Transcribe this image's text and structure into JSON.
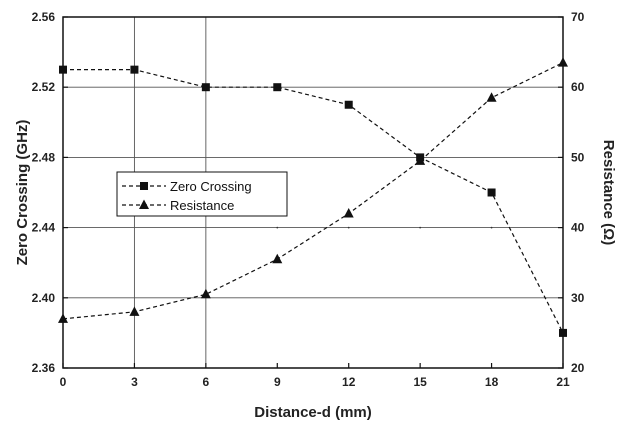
{
  "chart_data": {
    "type": "line",
    "xlabel": "Distance-d (mm)",
    "ylabel_left": "Zero Crossing (GHz)",
    "ylabel_right": "Resistance (Ω)",
    "x": [
      0,
      3,
      6,
      9,
      12,
      15,
      18,
      21
    ],
    "x_ticks": [
      0,
      3,
      6,
      9,
      12,
      15,
      18,
      21
    ],
    "xlim": [
      0,
      21
    ],
    "ylim_left": [
      2.36,
      2.56
    ],
    "y_ticks_left": [
      "2.36",
      "2.40",
      "2.44",
      "2.48",
      "2.52",
      "2.56"
    ],
    "ylim_right": [
      20,
      70
    ],
    "y_ticks_right": [
      "20",
      "30",
      "40",
      "50",
      "60",
      "70"
    ],
    "grid": "major gridlines on y (horizontal) and selected x (vertical)",
    "legend_placement": "center-left",
    "series": [
      {
        "name": "Zero Crossing",
        "axis": "left",
        "marker": "square",
        "line_style": "dashed",
        "values": [
          2.53,
          2.53,
          2.52,
          2.52,
          2.51,
          2.48,
          2.46,
          2.38
        ]
      },
      {
        "name": "Resistance",
        "axis": "right",
        "marker": "triangle",
        "line_style": "dashed",
        "values": [
          27,
          28,
          30.5,
          35.5,
          42,
          49.5,
          58.5,
          63.5
        ]
      }
    ],
    "colors": {
      "line": "#111111",
      "grid": "#555555",
      "axis": "#111111"
    }
  }
}
